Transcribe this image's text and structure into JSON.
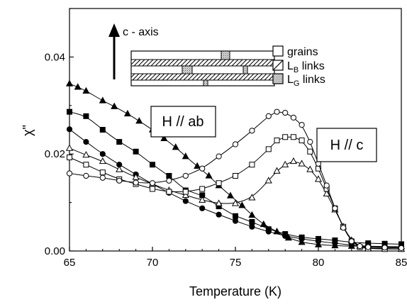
{
  "chart_data": {
    "type": "scatter",
    "xlabel": "Temperature (K)",
    "ylabel": "χ\"",
    "xlim": [
      65,
      85
    ],
    "ylim": [
      0,
      0.05
    ],
    "xticks": [
      "65",
      "70",
      "75",
      "80",
      "85"
    ],
    "yticks": [
      "0.00",
      "0.02",
      "0.04"
    ],
    "ytick_values": [
      0,
      0.02,
      0.04
    ],
    "xtick_values": [
      65,
      70,
      75,
      80,
      85
    ],
    "annotations": {
      "h_ab": "H // ab",
      "h_c": "H // c",
      "c_axis": "c - axis"
    },
    "inset_legend": [
      {
        "text": "grains",
        "pattern": "open"
      },
      {
        "base": "L",
        "sub": "B",
        "suffix": " links",
        "pattern": "hatched"
      },
      {
        "base": "L",
        "sub": "G",
        "suffix": " links",
        "pattern": "dotted"
      }
    ],
    "series": [
      {
        "marker": "triangle",
        "filled": true,
        "group": "H // ab",
        "x": [
          65,
          65.5,
          66,
          67,
          67.7,
          68.5,
          69.2,
          70,
          70.7,
          71.4,
          72,
          72.7,
          73.4,
          74,
          74.7,
          75.4,
          76,
          76.7,
          77.5,
          78.2,
          79,
          80,
          81,
          82,
          83,
          84,
          85
        ],
        "y": [
          0.0345,
          0.0338,
          0.033,
          0.031,
          0.0298,
          0.0283,
          0.0268,
          0.025,
          0.0232,
          0.0214,
          0.0195,
          0.0175,
          0.0155,
          0.0135,
          0.0114,
          0.0094,
          0.0074,
          0.0055,
          0.004,
          0.0027,
          0.0018,
          0.0013,
          0.0011,
          0.001,
          0.001,
          0.0009,
          0.0009
        ]
      },
      {
        "marker": "square",
        "filled": true,
        "group": "H // ab",
        "x": [
          65,
          66,
          67,
          68,
          69,
          70,
          71,
          72,
          73,
          74,
          75,
          76,
          77,
          78,
          79,
          80,
          81,
          82,
          83,
          84,
          85
        ],
        "y": [
          0.0287,
          0.0278,
          0.025,
          0.0225,
          0.0205,
          0.0178,
          0.0155,
          0.0125,
          0.0115,
          0.0092,
          0.0072,
          0.006,
          0.0045,
          0.0035,
          0.0028,
          0.0025,
          0.0022,
          0.0018,
          0.0016,
          0.0015,
          0.0014
        ]
      },
      {
        "marker": "circle",
        "filled": true,
        "group": "H // ab",
        "x": [
          65,
          66,
          67,
          68,
          69,
          70,
          71,
          72,
          73,
          74,
          75,
          76,
          77,
          78,
          79,
          80,
          81,
          82,
          83,
          84,
          85
        ],
        "y": [
          0.0251,
          0.0225,
          0.02,
          0.0178,
          0.0158,
          0.0138,
          0.012,
          0.0103,
          0.0088,
          0.0075,
          0.0062,
          0.005,
          0.004,
          0.0031,
          0.0025,
          0.002,
          0.0016,
          0.0012,
          0.001,
          0.0008,
          0.0007
        ]
      },
      {
        "marker": "triangle",
        "filled": false,
        "group": "H // c",
        "x": [
          65,
          66,
          67,
          68,
          69,
          70,
          71,
          72,
          73,
          74,
          75,
          76,
          77,
          77.5,
          78,
          78.5,
          79,
          79.5,
          80,
          80.5,
          81,
          81.5,
          82,
          82.5,
          83,
          84,
          85
        ],
        "y": [
          0.0212,
          0.0198,
          0.0185,
          0.0168,
          0.0152,
          0.0138,
          0.0125,
          0.0115,
          0.0105,
          0.0098,
          0.0098,
          0.011,
          0.0145,
          0.0165,
          0.0178,
          0.0185,
          0.018,
          0.0168,
          0.0148,
          0.0118,
          0.0085,
          0.005,
          0.0022,
          0.001,
          0.0006,
          0.0005,
          0.0004
        ]
      },
      {
        "marker": "square",
        "filled": false,
        "group": "H // c",
        "x": [
          65,
          66,
          67,
          68,
          69,
          70,
          71,
          72,
          73,
          74,
          75,
          76,
          77,
          77.5,
          78,
          78.5,
          79,
          79.5,
          80,
          80.5,
          81,
          81.5,
          82,
          82.5,
          83,
          84,
          85
        ],
        "y": [
          0.0193,
          0.0178,
          0.0162,
          0.0148,
          0.0138,
          0.0128,
          0.0122,
          0.0122,
          0.0128,
          0.014,
          0.0155,
          0.0178,
          0.021,
          0.0228,
          0.0235,
          0.0235,
          0.0228,
          0.0205,
          0.017,
          0.0128,
          0.0088,
          0.005,
          0.002,
          0.0008,
          0.0005,
          0.0004,
          0.0004
        ]
      },
      {
        "marker": "circle",
        "filled": false,
        "group": "H // c",
        "x": [
          65,
          66,
          67,
          68,
          69,
          70,
          71,
          72,
          73,
          74,
          75,
          76,
          77,
          77.5,
          78,
          78.5,
          79,
          79.5,
          80,
          80.5,
          81,
          81.5,
          82,
          82.5,
          83,
          84,
          85
        ],
        "y": [
          0.016,
          0.0155,
          0.0151,
          0.0145,
          0.0141,
          0.014,
          0.0145,
          0.0155,
          0.017,
          0.0195,
          0.022,
          0.0248,
          0.0278,
          0.0287,
          0.0285,
          0.0275,
          0.026,
          0.0225,
          0.018,
          0.0135,
          0.0088,
          0.0048,
          0.002,
          0.001,
          0.0008,
          0.0007,
          0.0006
        ]
      }
    ]
  }
}
